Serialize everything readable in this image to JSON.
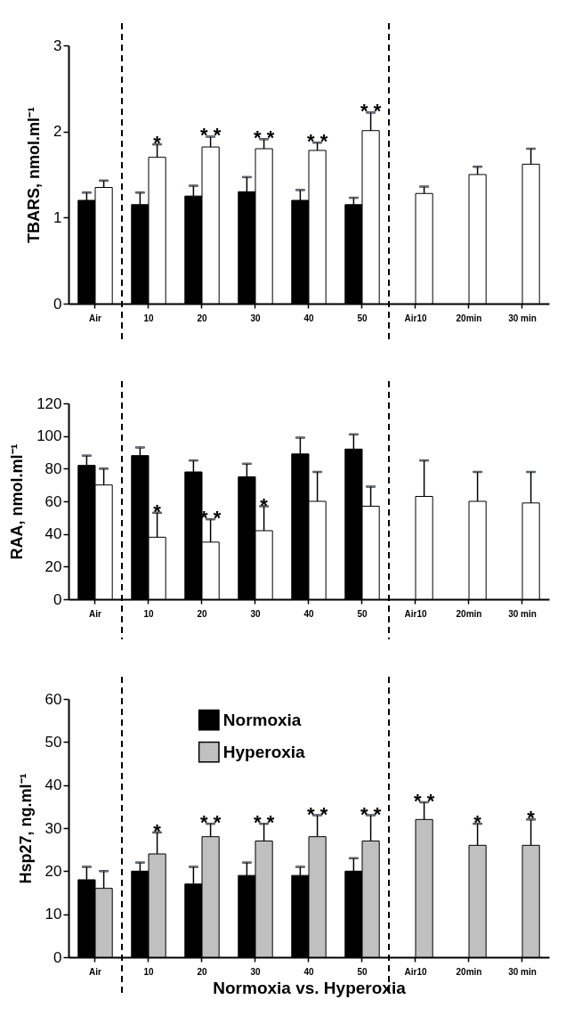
{
  "chart_data": [
    {
      "type": "bar",
      "ylabel": "TBARS, nmol.ml⁻¹",
      "categories": [
        "Air",
        "10",
        "20",
        "30",
        "40",
        "50",
        "Air10",
        "20min",
        "30 min"
      ],
      "ylim": [
        0,
        3
      ],
      "yticks": [
        0,
        1,
        2,
        3
      ],
      "grid": false,
      "series": [
        {
          "color": "#000000",
          "values": [
            1.2,
            1.15,
            1.25,
            1.3,
            1.2,
            1.15,
            null,
            null,
            null
          ],
          "errors": [
            0.09,
            0.14,
            0.12,
            0.17,
            0.12,
            0.08,
            null,
            null,
            null
          ]
        },
        {
          "color": "#ffffff",
          "values": [
            1.35,
            1.7,
            1.82,
            1.8,
            1.78,
            2.01,
            1.28,
            1.5,
            1.62
          ],
          "errors": [
            0.08,
            0.15,
            0.12,
            0.11,
            0.09,
            0.21,
            0.08,
            0.09,
            0.18
          ]
        }
      ],
      "annotations": [
        {
          "text": "*",
          "x": "10",
          "y": 1.7
        },
        {
          "text": "* *",
          "x": "20",
          "y": 1.82
        },
        {
          "text": "* *",
          "x": "30",
          "y": 1.8
        },
        {
          "text": "* *",
          "x": "40",
          "y": 1.78
        },
        {
          "text": "* *",
          "x": "50",
          "y": 2.01
        }
      ]
    },
    {
      "type": "bar",
      "ylabel": "RAA, nmol.ml⁻¹",
      "categories": [
        "Air",
        "10",
        "20",
        "30",
        "40",
        "50",
        "Air10",
        "20min",
        "30 min"
      ],
      "ylim": [
        0,
        120
      ],
      "yticks": [
        0,
        20,
        40,
        60,
        80,
        100,
        120
      ],
      "grid": false,
      "series": [
        {
          "color": "#000000",
          "values": [
            82,
            88,
            78,
            75,
            89,
            92,
            null,
            null,
            null
          ],
          "errors": [
            6,
            5,
            7,
            8,
            10,
            9,
            null,
            null,
            null
          ]
        },
        {
          "color": "#ffffff",
          "values": [
            70,
            38,
            35,
            42,
            60,
            57,
            63,
            60,
            59
          ],
          "errors": [
            10,
            15,
            14,
            15,
            18,
            12,
            22,
            18,
            19
          ]
        }
      ],
      "annotations": [
        {
          "text": "*",
          "x": "10",
          "y": 38
        },
        {
          "text": "* *",
          "x": "20",
          "y": 35
        },
        {
          "text": "*",
          "x": "30",
          "y": 42
        }
      ]
    },
    {
      "type": "bar",
      "ylabel": "Hsp27, ng.ml⁻¹",
      "xlabel": "Normoxia vs. Hyperoxia",
      "categories": [
        "Air",
        "10",
        "20",
        "30",
        "40",
        "50",
        "Air10",
        "20min",
        "30 min"
      ],
      "ylim": [
        0,
        60
      ],
      "yticks": [
        0,
        10,
        20,
        30,
        40,
        50,
        60
      ],
      "grid": false,
      "legend": "top left",
      "series": [
        {
          "name": "Normoxia",
          "color": "#000000",
          "values": [
            18,
            20,
            17,
            19,
            19,
            20,
            null,
            null,
            null
          ],
          "errors": [
            3,
            2,
            4,
            3,
            2,
            3,
            null,
            null,
            null
          ]
        },
        {
          "name": "Hyperoxia",
          "color": "#c0c0c0",
          "values": [
            16,
            24,
            28,
            27,
            28,
            27,
            32,
            26,
            26
          ],
          "errors": [
            4,
            5,
            3,
            4,
            5,
            6,
            4,
            5,
            6
          ]
        }
      ],
      "annotations": [
        {
          "text": "*",
          "x": "10",
          "y": 24
        },
        {
          "text": "* *",
          "x": "20",
          "y": 28
        },
        {
          "text": "* *",
          "x": "30",
          "y": 27
        },
        {
          "text": "* *",
          "x": "40",
          "y": 28
        },
        {
          "text": "* *",
          "x": "50",
          "y": 27
        },
        {
          "text": "* *",
          "x": "Air10",
          "y": 32
        },
        {
          "text": "*",
          "x": "20min",
          "y": 26
        },
        {
          "text": "*",
          "x": "30 min",
          "y": 26
        }
      ]
    }
  ]
}
